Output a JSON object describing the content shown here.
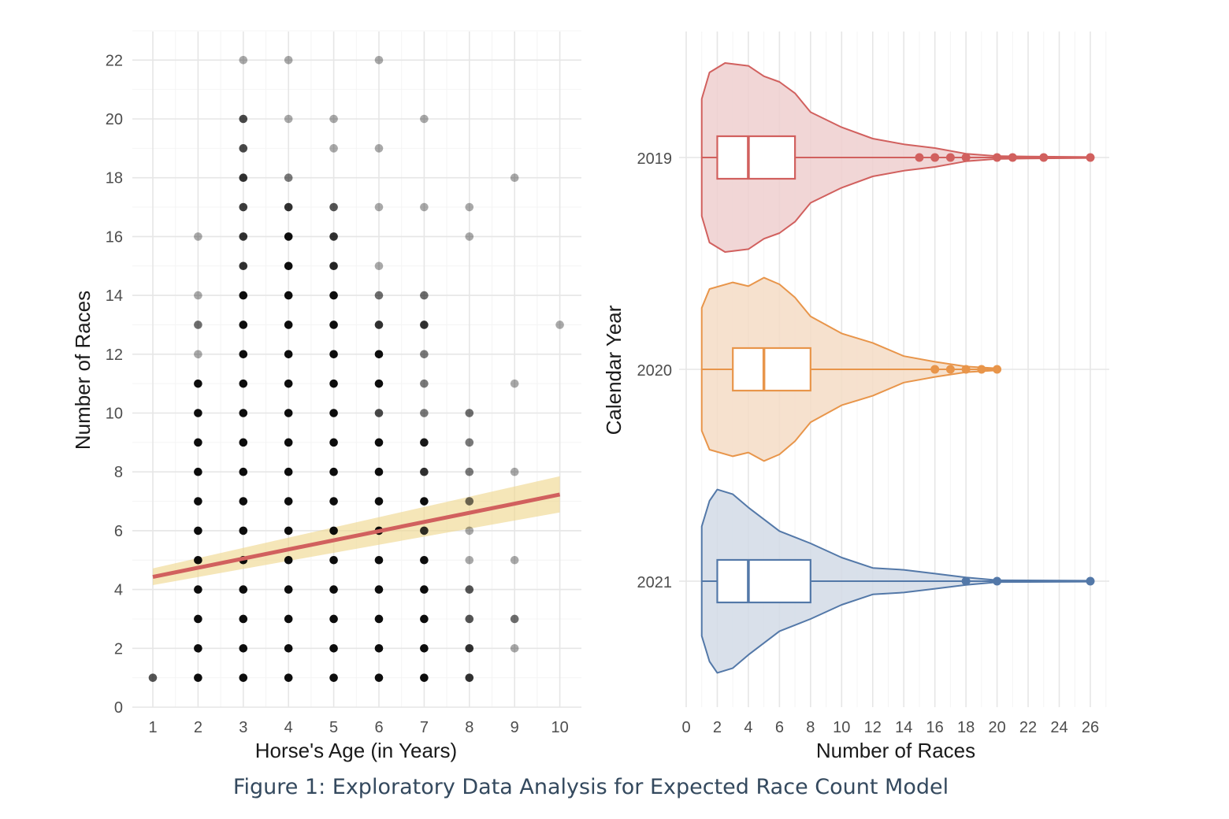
{
  "caption": "Figure 1: Exploratory Data Analysis for Expected Race Count Model",
  "chart_data": [
    {
      "type": "scatter",
      "xlabel": "Horse's Age (in Years)",
      "ylabel": "Number of Races",
      "xlim": [
        0.6,
        10.5
      ],
      "ylim": [
        0,
        23
      ],
      "x_ticks": [
        1,
        2,
        3,
        4,
        5,
        6,
        7,
        8,
        9,
        10
      ],
      "y_ticks": [
        0,
        2,
        4,
        6,
        8,
        10,
        12,
        14,
        16,
        18,
        20,
        22
      ],
      "grid": true,
      "point_color": "#000000",
      "points": [
        [
          1,
          1,
          0.7
        ],
        [
          2,
          1,
          1
        ],
        [
          2,
          2,
          1
        ],
        [
          2,
          3,
          1
        ],
        [
          2,
          4,
          1
        ],
        [
          2,
          5,
          1
        ],
        [
          2,
          6,
          1
        ],
        [
          2,
          7,
          1
        ],
        [
          2,
          8,
          1
        ],
        [
          2,
          9,
          1
        ],
        [
          2,
          10,
          1
        ],
        [
          2,
          11,
          1
        ],
        [
          2,
          12,
          0.35
        ],
        [
          2,
          13,
          0.6
        ],
        [
          2,
          14,
          0.35
        ],
        [
          2,
          16,
          0.35
        ],
        [
          3,
          1,
          1
        ],
        [
          3,
          2,
          1
        ],
        [
          3,
          3,
          1
        ],
        [
          3,
          4,
          1
        ],
        [
          3,
          5,
          1
        ],
        [
          3,
          6,
          1
        ],
        [
          3,
          7,
          1
        ],
        [
          3,
          8,
          1
        ],
        [
          3,
          9,
          1
        ],
        [
          3,
          10,
          1
        ],
        [
          3,
          11,
          1
        ],
        [
          3,
          12,
          1
        ],
        [
          3,
          13,
          1
        ],
        [
          3,
          14,
          1
        ],
        [
          3,
          15,
          0.85
        ],
        [
          3,
          16,
          0.85
        ],
        [
          3,
          17,
          0.8
        ],
        [
          3,
          18,
          0.85
        ],
        [
          3,
          19,
          0.75
        ],
        [
          3,
          20,
          0.75
        ],
        [
          3,
          22,
          0.35
        ],
        [
          4,
          1,
          1
        ],
        [
          4,
          2,
          1
        ],
        [
          4,
          3,
          1
        ],
        [
          4,
          4,
          1
        ],
        [
          4,
          5,
          1
        ],
        [
          4,
          6,
          1
        ],
        [
          4,
          7,
          1
        ],
        [
          4,
          8,
          1
        ],
        [
          4,
          9,
          1
        ],
        [
          4,
          10,
          1
        ],
        [
          4,
          11,
          1
        ],
        [
          4,
          12,
          1
        ],
        [
          4,
          13,
          1
        ],
        [
          4,
          14,
          1
        ],
        [
          4,
          15,
          1
        ],
        [
          4,
          16,
          1
        ],
        [
          4,
          17,
          0.85
        ],
        [
          4,
          18,
          0.55
        ],
        [
          4,
          20,
          0.35
        ],
        [
          4,
          22,
          0.35
        ],
        [
          5,
          1,
          1
        ],
        [
          5,
          2,
          1
        ],
        [
          5,
          3,
          1
        ],
        [
          5,
          4,
          1
        ],
        [
          5,
          5,
          1
        ],
        [
          5,
          6,
          1
        ],
        [
          5,
          7,
          1
        ],
        [
          5,
          8,
          1
        ],
        [
          5,
          9,
          1
        ],
        [
          5,
          10,
          1
        ],
        [
          5,
          11,
          1
        ],
        [
          5,
          12,
          1
        ],
        [
          5,
          13,
          1
        ],
        [
          5,
          14,
          1
        ],
        [
          5,
          15,
          0.9
        ],
        [
          5,
          16,
          0.85
        ],
        [
          5,
          17,
          0.7
        ],
        [
          5,
          19,
          0.35
        ],
        [
          5,
          20,
          0.35
        ],
        [
          6,
          1,
          1
        ],
        [
          6,
          2,
          1
        ],
        [
          6,
          3,
          1
        ],
        [
          6,
          4,
          1
        ],
        [
          6,
          5,
          1
        ],
        [
          6,
          6,
          1
        ],
        [
          6,
          7,
          1
        ],
        [
          6,
          8,
          1
        ],
        [
          6,
          9,
          1
        ],
        [
          6,
          10,
          0.75
        ],
        [
          6,
          11,
          1
        ],
        [
          6,
          12,
          1
        ],
        [
          6,
          13,
          0.85
        ],
        [
          6,
          14,
          0.6
        ],
        [
          6,
          15,
          0.35
        ],
        [
          6,
          17,
          0.35
        ],
        [
          6,
          19,
          0.35
        ],
        [
          6,
          22,
          0.35
        ],
        [
          7,
          1,
          1
        ],
        [
          7,
          2,
          1
        ],
        [
          7,
          3,
          1
        ],
        [
          7,
          4,
          1
        ],
        [
          7,
          5,
          1
        ],
        [
          7,
          6,
          0.85
        ],
        [
          7,
          7,
          1
        ],
        [
          7,
          8,
          0.85
        ],
        [
          7,
          9,
          0.95
        ],
        [
          7,
          10,
          0.55
        ],
        [
          7,
          11,
          0.55
        ],
        [
          7,
          12,
          0.55
        ],
        [
          7,
          13,
          0.85
        ],
        [
          7,
          14,
          0.6
        ],
        [
          7,
          17,
          0.35
        ],
        [
          7,
          20,
          0.35
        ],
        [
          8,
          1,
          0.85
        ],
        [
          8,
          2,
          0.85
        ],
        [
          8,
          3,
          0.7
        ],
        [
          8,
          4,
          0.7
        ],
        [
          8,
          5,
          0.35
        ],
        [
          8,
          6,
          0.35
        ],
        [
          8,
          7,
          0.6
        ],
        [
          8,
          8,
          0.55
        ],
        [
          8,
          9,
          0.55
        ],
        [
          8,
          10,
          0.6
        ],
        [
          8,
          16,
          0.35
        ],
        [
          8,
          17,
          0.35
        ],
        [
          9,
          2,
          0.35
        ],
        [
          9,
          3,
          0.6
        ],
        [
          9,
          5,
          0.35
        ],
        [
          9,
          8,
          0.35
        ],
        [
          9,
          11,
          0.35
        ],
        [
          9,
          18,
          0.35
        ],
        [
          10,
          13,
          0.35
        ]
      ],
      "trend_line": {
        "x": [
          1,
          10
        ],
        "y": [
          4.43,
          7.23
        ],
        "ci_low": [
          4.15,
          6.62
        ],
        "ci_high": [
          4.72,
          7.85
        ],
        "color": "#d1605e",
        "ci_color": "#efd992"
      }
    },
    {
      "type": "violin",
      "xlabel": "Number of Races",
      "ylabel": "Calendar Year",
      "xlim": [
        0,
        27
      ],
      "x_ticks": [
        0,
        2,
        4,
        6,
        8,
        10,
        12,
        14,
        16,
        18,
        20,
        22,
        24,
        26
      ],
      "categories": [
        "2019",
        "2020",
        "2021"
      ],
      "grid": true,
      "series": [
        {
          "category": "2019",
          "color": "#d1605e",
          "fill": "#efcfcf",
          "box": {
            "q1": 2,
            "median": 4,
            "q3": 7,
            "whisker_low": 1,
            "whisker_high": 14
          },
          "outliers": [
            15,
            16,
            17,
            18,
            20,
            21,
            23,
            26
          ],
          "density": [
            [
              1,
              0.62
            ],
            [
              1.5,
              0.9
            ],
            [
              2.5,
              1.0
            ],
            [
              4,
              0.97
            ],
            [
              5,
              0.86
            ],
            [
              6,
              0.8
            ],
            [
              7,
              0.68
            ],
            [
              8,
              0.48
            ],
            [
              10,
              0.32
            ],
            [
              12,
              0.2
            ],
            [
              14,
              0.14
            ],
            [
              16,
              0.1
            ],
            [
              18,
              0.04
            ],
            [
              20,
              0.015
            ],
            [
              22,
              0.01
            ],
            [
              26,
              0.005
            ]
          ]
        },
        {
          "category": "2020",
          "color": "#e8954a",
          "fill": "#f5dcc6",
          "box": {
            "q1": 3,
            "median": 5,
            "q3": 8,
            "whisker_low": 1,
            "whisker_high": 15
          },
          "outliers": [
            16,
            17,
            18,
            19,
            20
          ],
          "density": [
            [
              1,
              0.65
            ],
            [
              1.5,
              0.85
            ],
            [
              3,
              0.92
            ],
            [
              4,
              0.88
            ],
            [
              5,
              0.97
            ],
            [
              6,
              0.9
            ],
            [
              7,
              0.76
            ],
            [
              8,
              0.56
            ],
            [
              10,
              0.38
            ],
            [
              12,
              0.28
            ],
            [
              14,
              0.14
            ],
            [
              16,
              0.08
            ],
            [
              18,
              0.03
            ],
            [
              20,
              0.01
            ]
          ]
        },
        {
          "category": "2021",
          "color": "#5378a8",
          "fill": "#d2dae6",
          "box": {
            "q1": 2,
            "median": 4,
            "q3": 8,
            "whisker_low": 1,
            "whisker_high": 17
          },
          "outliers": [
            18,
            20,
            26
          ],
          "density": [
            [
              1,
              0.58
            ],
            [
              1.5,
              0.85
            ],
            [
              2,
              0.97
            ],
            [
              3,
              0.92
            ],
            [
              4,
              0.78
            ],
            [
              6,
              0.53
            ],
            [
              8,
              0.4
            ],
            [
              10,
              0.25
            ],
            [
              12,
              0.14
            ],
            [
              14,
              0.12
            ],
            [
              16,
              0.08
            ],
            [
              18,
              0.04
            ],
            [
              20,
              0.01
            ],
            [
              22,
              0.008
            ],
            [
              26,
              0.005
            ]
          ]
        }
      ]
    }
  ]
}
